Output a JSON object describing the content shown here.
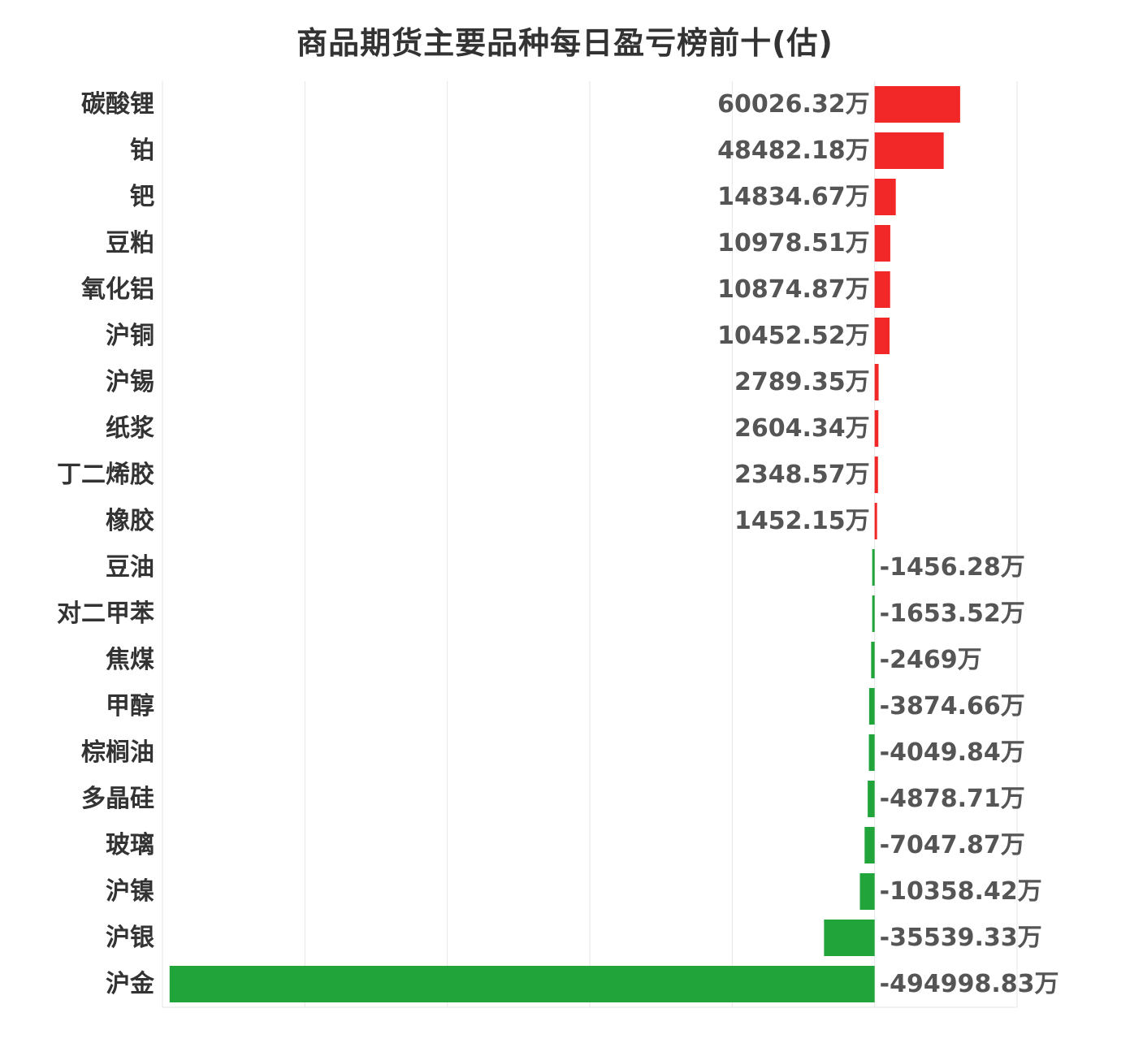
{
  "chart_data": {
    "type": "bar",
    "orientation": "horizontal",
    "title": "商品期货主要品种每日盈亏榜前十(估)",
    "unit": "万",
    "categories": [
      "碳酸锂",
      "铂",
      "钯",
      "豆粕",
      "氧化铝",
      "沪铜",
      "沪锡",
      "纸浆",
      "丁二烯胶",
      "橡胶",
      "豆油",
      "对二甲苯",
      "焦煤",
      "甲醇",
      "棕榈油",
      "多晶硅",
      "玻璃",
      "沪镍",
      "沪银",
      "沪金"
    ],
    "values": [
      60026.32,
      48482.18,
      14834.67,
      10978.51,
      10874.87,
      10452.52,
      2789.35,
      2604.34,
      2348.57,
      1452.15,
      -1456.28,
      -1653.52,
      -2469,
      -3874.66,
      -4049.84,
      -4878.71,
      -7047.87,
      -10358.42,
      -35539.33,
      -494998.83
    ],
    "data_labels": [
      "60026.32万",
      "48482.18万",
      "14834.67万",
      "10978.51万",
      "10874.87万",
      "10452.52万",
      "2789.35万",
      "2604.34万",
      "2348.57万",
      "1452.15万",
      "-1456.28万",
      "-1653.52万",
      "-2469万",
      "-3874.66万",
      "-4049.84万",
      "-4878.71万",
      "-7047.87万",
      "-10358.42万",
      "-35539.33万",
      "-494998.83万"
    ],
    "xlim": [
      -500000,
      100000
    ],
    "grid": true,
    "colors": {
      "positive": "#f22727",
      "negative": "#21a43a",
      "grid": "#e6e6e6",
      "category_text": "#333333",
      "value_text": "#555555"
    }
  }
}
